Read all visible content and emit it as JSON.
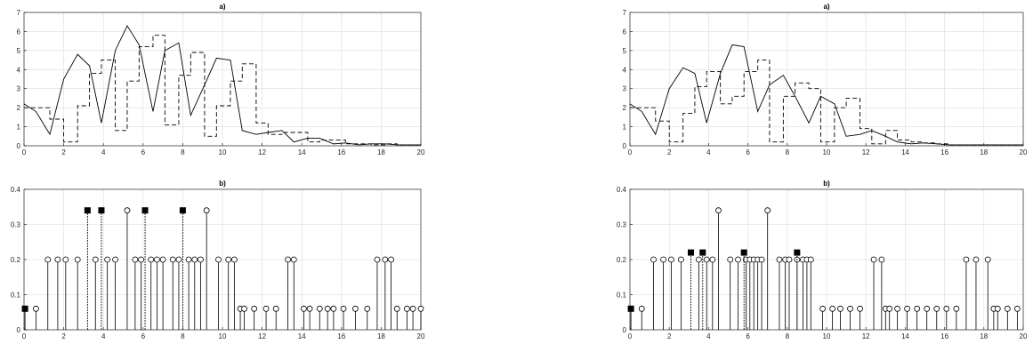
{
  "chart_data": [
    {
      "type": "line",
      "title": "a)",
      "xlim": [
        0,
        20
      ],
      "ylim": [
        0,
        7
      ],
      "xticks": [
        0,
        2,
        4,
        6,
        8,
        10,
        12,
        14,
        16,
        18,
        20
      ],
      "yticks": [
        0,
        1,
        2,
        3,
        4,
        5,
        6,
        7
      ],
      "grid": true,
      "series": [
        {
          "style": "solid",
          "x": [
            0,
            0.6,
            1.3,
            2.0,
            2.7,
            3.3,
            3.9,
            4.6,
            5.2,
            5.8,
            6.5,
            7.1,
            7.8,
            8.4,
            9.1,
            9.7,
            10.4,
            11.0,
            11.7,
            12.3,
            13.0,
            13.6,
            14.3,
            14.9,
            15.6,
            16.2,
            16.9,
            17.5,
            18.2,
            18.8,
            19.5,
            20
          ],
          "y": [
            2.2,
            1.8,
            0.6,
            3.5,
            4.8,
            4.2,
            1.2,
            5.0,
            6.3,
            5.3,
            1.8,
            5.0,
            5.4,
            1.6,
            3.2,
            4.6,
            4.5,
            0.8,
            0.6,
            0.7,
            0.8,
            0.2,
            0.4,
            0.4,
            0.1,
            0.15,
            0.05,
            0.1,
            0.1,
            0.05,
            0.05,
            0.05
          ]
        },
        {
          "style": "dashed",
          "stairs": true,
          "x": [
            0,
            0.6,
            1.3,
            2.0,
            2.7,
            3.3,
            3.9,
            4.6,
            5.2,
            5.8,
            6.5,
            7.1,
            7.8,
            8.4,
            9.1,
            9.7,
            10.4,
            11.0,
            11.7,
            12.3,
            13.0,
            13.6,
            14.3,
            14.9,
            15.6,
            16.2,
            16.9,
            17.5,
            18.2,
            18.8,
            19.5,
            20
          ],
          "y": [
            2.0,
            2.0,
            1.4,
            0.2,
            2.1,
            3.8,
            4.5,
            0.8,
            3.4,
            5.2,
            5.8,
            1.1,
            3.7,
            4.9,
            0.5,
            2.1,
            3.4,
            4.3,
            1.2,
            0.6,
            0.7,
            0.7,
            0.2,
            0.3,
            0.3,
            0.1,
            0.1,
            0.05,
            0.1,
            0.05,
            0.05,
            0.05
          ]
        }
      ]
    },
    {
      "type": "stem",
      "title": "b)",
      "xlim": [
        0,
        20
      ],
      "ylim": [
        0,
        0.4
      ],
      "xticks": [
        0,
        2,
        4,
        6,
        8,
        10,
        12,
        14,
        16,
        18,
        20
      ],
      "yticks": [
        0,
        0.1,
        0.2,
        0.3,
        0.4
      ],
      "grid": true,
      "series": [
        {
          "marker": "circle",
          "x": [
            0.05,
            0.6,
            1.2,
            1.7,
            2.1,
            2.7,
            3.6,
            4.2,
            4.6,
            5.2,
            5.6,
            5.9,
            6.4,
            6.7,
            7.0,
            7.5,
            7.8,
            8.3,
            8.6,
            8.9,
            9.2,
            9.8,
            10.3,
            10.6,
            10.9,
            11.1,
            11.6,
            12.2,
            12.7,
            13.3,
            13.6,
            14.1,
            14.4,
            14.9,
            15.3,
            15.6,
            16.1,
            16.7,
            17.3,
            17.8,
            18.2,
            18.5,
            18.8,
            19.3,
            19.6,
            20.0
          ],
          "y": [
            0.06,
            0.06,
            0.2,
            0.2,
            0.2,
            0.2,
            0.2,
            0.2,
            0.2,
            0.34,
            0.2,
            0.2,
            0.2,
            0.2,
            0.2,
            0.2,
            0.2,
            0.2,
            0.2,
            0.2,
            0.34,
            0.2,
            0.2,
            0.2,
            0.06,
            0.06,
            0.06,
            0.06,
            0.06,
            0.2,
            0.2,
            0.06,
            0.06,
            0.06,
            0.06,
            0.06,
            0.06,
            0.06,
            0.06,
            0.2,
            0.2,
            0.2,
            0.06,
            0.06,
            0.06,
            0.06
          ]
        },
        {
          "marker": "square",
          "dashed_stem": true,
          "x": [
            0.05,
            3.2,
            3.9,
            6.1,
            8.0
          ],
          "y": [
            0.06,
            0.34,
            0.34,
            0.34,
            0.34
          ]
        }
      ]
    },
    {
      "type": "line",
      "title": "a)",
      "xlim": [
        0,
        20
      ],
      "ylim": [
        0,
        7
      ],
      "xticks": [
        0,
        2,
        4,
        6,
        8,
        10,
        12,
        14,
        16,
        18,
        20
      ],
      "yticks": [
        0,
        1,
        2,
        3,
        4,
        5,
        6,
        7
      ],
      "grid": true,
      "series": [
        {
          "style": "solid",
          "x": [
            0,
            0.6,
            1.3,
            2.0,
            2.7,
            3.3,
            3.9,
            4.6,
            5.2,
            5.8,
            6.5,
            7.1,
            7.8,
            8.4,
            9.1,
            9.7,
            10.4,
            11.0,
            11.7,
            12.3,
            13.0,
            13.6,
            14.3,
            14.9,
            15.6,
            16.2,
            16.9,
            17.5,
            18.2,
            18.8,
            19.5,
            20
          ],
          "y": [
            2.2,
            1.8,
            0.6,
            3.0,
            4.1,
            3.8,
            1.2,
            3.8,
            5.3,
            5.2,
            1.8,
            3.2,
            3.7,
            2.6,
            1.2,
            2.6,
            2.2,
            0.5,
            0.6,
            0.8,
            0.5,
            0.2,
            0.1,
            0.15,
            0.1,
            0.05,
            0.05,
            0.05,
            0.05,
            0.05,
            0.05,
            0.05
          ]
        },
        {
          "style": "dashed",
          "stairs": true,
          "x": [
            0,
            0.6,
            1.3,
            2.0,
            2.7,
            3.3,
            3.9,
            4.6,
            5.2,
            5.8,
            6.5,
            7.1,
            7.8,
            8.4,
            9.1,
            9.7,
            10.4,
            11.0,
            11.7,
            12.3,
            13.0,
            13.6,
            14.3,
            14.9,
            15.6,
            16.2,
            16.9,
            17.5,
            18.2,
            18.8,
            19.5,
            20
          ],
          "y": [
            2.0,
            2.0,
            1.3,
            0.2,
            1.7,
            3.1,
            3.9,
            2.2,
            2.6,
            3.9,
            4.5,
            0.2,
            2.6,
            3.3,
            3.0,
            0.2,
            2.0,
            2.5,
            0.9,
            0.1,
            0.8,
            0.3,
            0.2,
            0.15,
            0.1,
            0.05,
            0.05,
            0.05,
            0.05,
            0.05,
            0.05,
            0.05
          ]
        }
      ]
    },
    {
      "type": "stem",
      "title": "b)",
      "xlim": [
        0,
        20
      ],
      "ylim": [
        0,
        0.4
      ],
      "xticks": [
        0,
        2,
        4,
        6,
        8,
        10,
        12,
        14,
        16,
        18,
        20
      ],
      "yticks": [
        0,
        0.1,
        0.2,
        0.3,
        0.4
      ],
      "grid": true,
      "series": [
        {
          "marker": "circle",
          "x": [
            0.05,
            0.6,
            1.2,
            1.7,
            2.1,
            2.6,
            3.5,
            3.9,
            4.2,
            4.5,
            5.1,
            5.5,
            5.9,
            6.1,
            6.3,
            6.5,
            6.7,
            7.0,
            7.6,
            7.9,
            8.1,
            8.5,
            8.8,
            9.0,
            9.2,
            9.8,
            10.3,
            10.7,
            11.2,
            11.7,
            12.4,
            12.8,
            13.0,
            13.2,
            13.6,
            14.1,
            14.6,
            15.1,
            15.6,
            16.1,
            16.6,
            17.1,
            17.6,
            18.2,
            18.5,
            18.7,
            19.2,
            19.7
          ],
          "y": [
            0.06,
            0.06,
            0.2,
            0.2,
            0.2,
            0.2,
            0.2,
            0.2,
            0.2,
            0.34,
            0.2,
            0.2,
            0.2,
            0.2,
            0.2,
            0.2,
            0.2,
            0.34,
            0.2,
            0.2,
            0.2,
            0.2,
            0.2,
            0.2,
            0.2,
            0.06,
            0.06,
            0.06,
            0.06,
            0.06,
            0.2,
            0.2,
            0.06,
            0.06,
            0.06,
            0.06,
            0.06,
            0.06,
            0.06,
            0.06,
            0.06,
            0.2,
            0.2,
            0.2,
            0.06,
            0.06,
            0.06,
            0.06
          ]
        },
        {
          "marker": "square",
          "dashed_stem": true,
          "x": [
            0.05,
            3.1,
            3.7,
            5.8,
            8.5
          ],
          "y": [
            0.06,
            0.22,
            0.22,
            0.22,
            0.22
          ]
        }
      ]
    }
  ]
}
